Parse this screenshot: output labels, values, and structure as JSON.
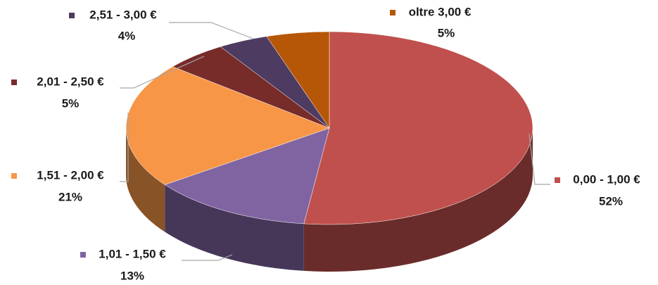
{
  "chart_data": {
    "type": "pie3d",
    "categories": [
      "0,00 - 1,00 €",
      "1,01 - 1,50 €",
      "1,51 - 2,00 €",
      "2,01 - 2,50 €",
      "2,51 - 3,00 €",
      "oltre 3,00 €"
    ],
    "values": [
      52,
      13,
      21,
      5,
      4,
      5
    ],
    "value_labels": [
      "52%",
      "13%",
      "21%",
      "5%",
      "4%",
      "5%"
    ],
    "colors": [
      "#c0504d",
      "#8064a2",
      "#f79646",
      "#772c2a",
      "#4d3b62",
      "#b65708"
    ]
  }
}
